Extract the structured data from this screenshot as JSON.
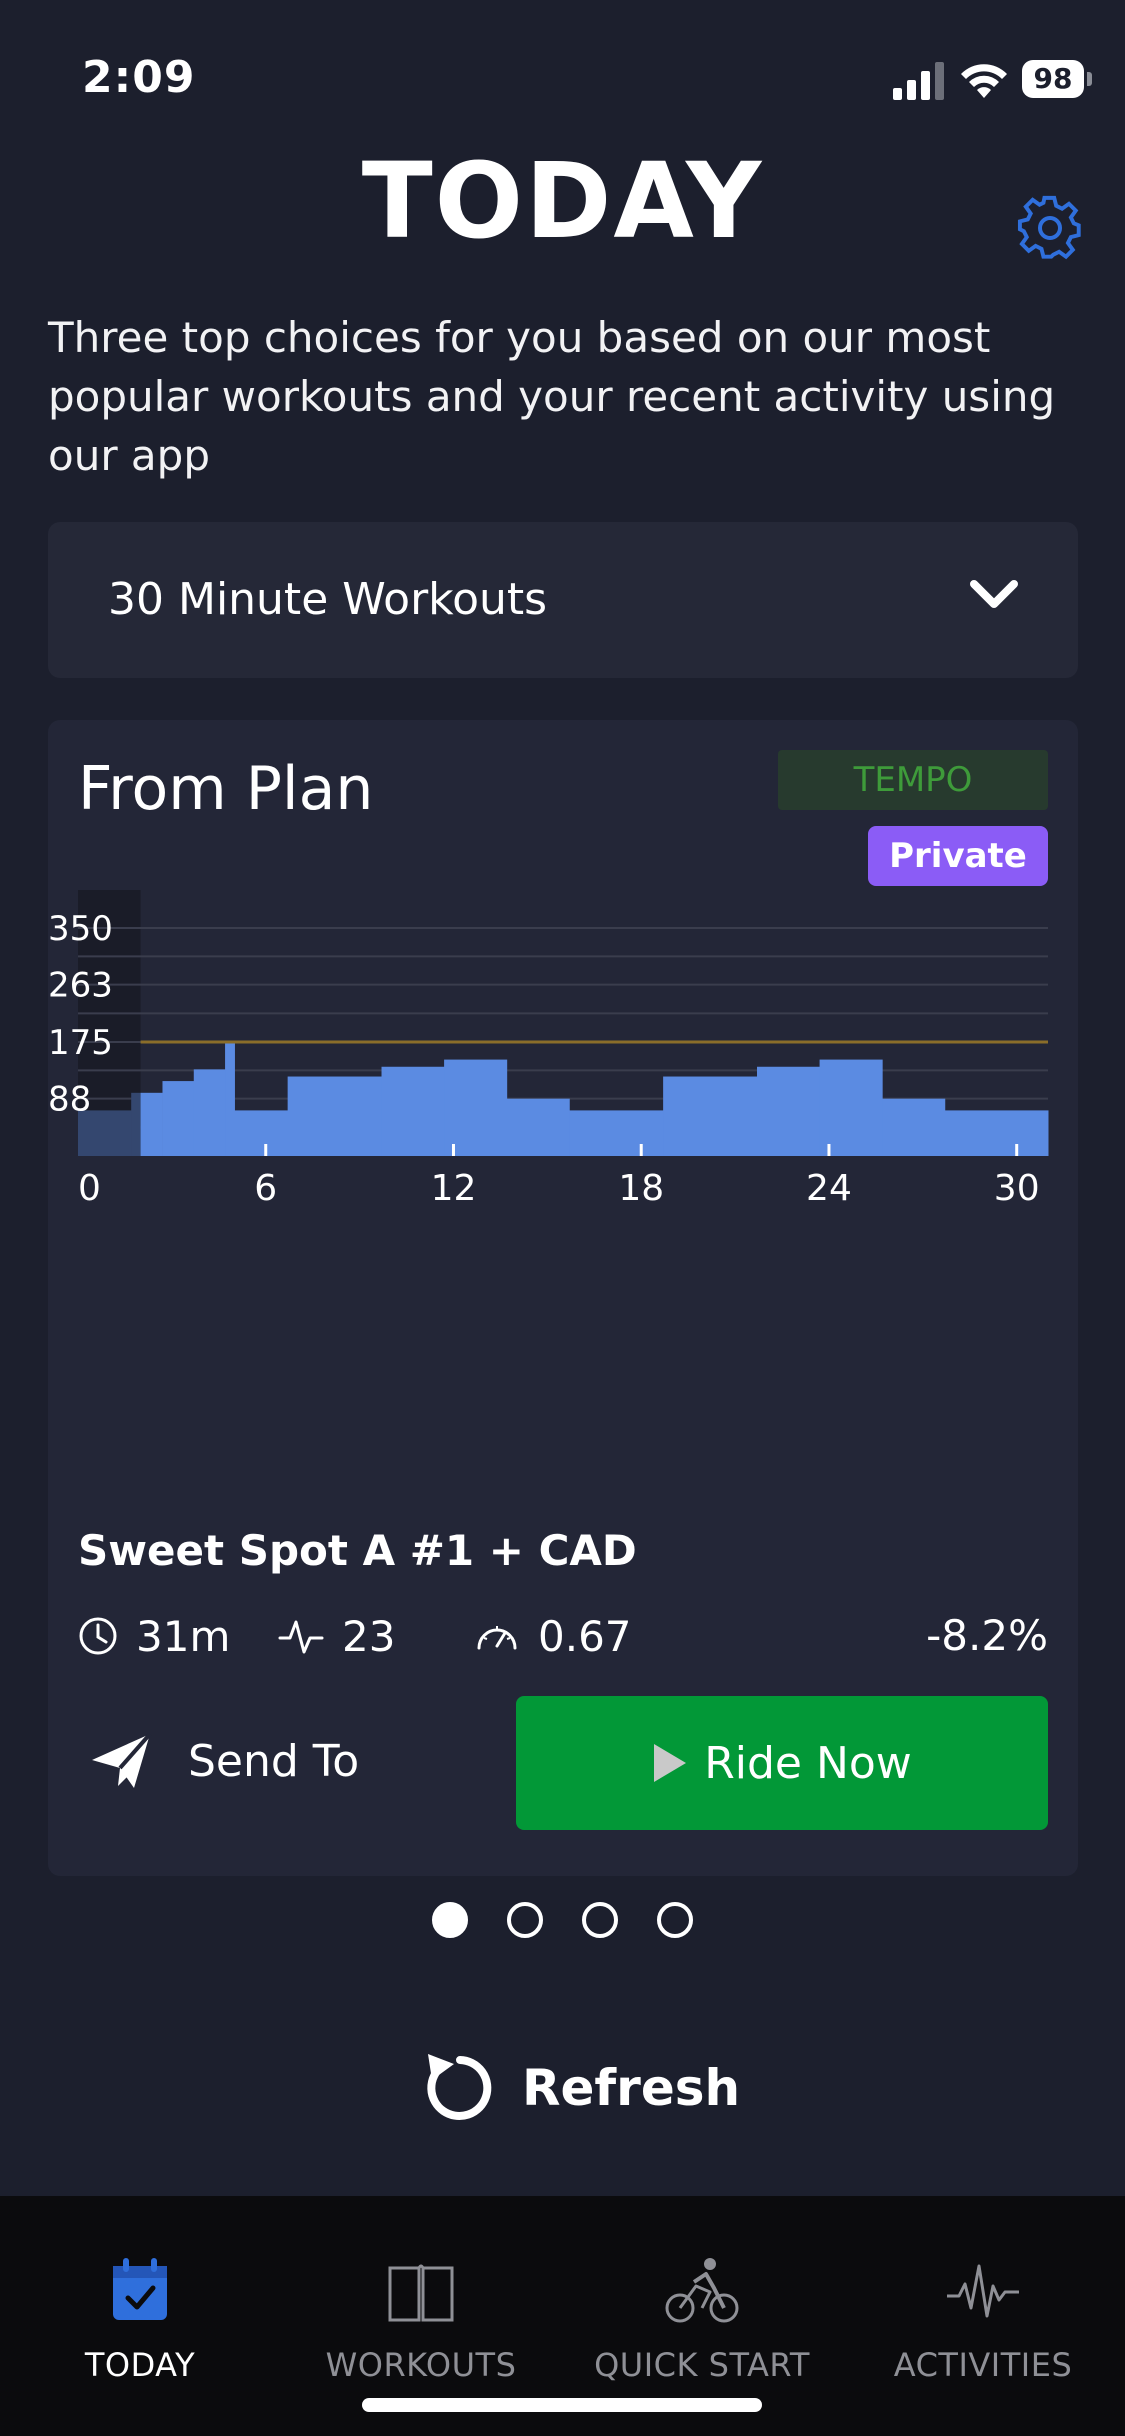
{
  "status_bar": {
    "time": "2:09",
    "battery": "98"
  },
  "header": {
    "title": "TODAY",
    "settings_icon": "gear-icon"
  },
  "intro_text": "Three top choices for you based on our most popular workouts and your recent activity using our app",
  "filter": {
    "selected": "30 Minute Workouts"
  },
  "card": {
    "title": "From Plan",
    "tag": "TEMPO",
    "visibility": "Private",
    "workout_name": "Sweet Spot A #1 + CAD",
    "stats": {
      "duration": "31m",
      "tss": "23",
      "intensity": "0.67",
      "change": "-8.2%"
    },
    "send_label": "Send To",
    "ride_label": "Ride Now"
  },
  "chart_data": {
    "type": "area",
    "y_ticks": [
      350,
      263,
      175,
      88
    ],
    "x_ticks": [
      0,
      6,
      12,
      18,
      24,
      30
    ],
    "xlim": [
      0,
      31
    ],
    "ylim": [
      0,
      350
    ],
    "reference_line": 175,
    "highlight_range": [
      0,
      2
    ],
    "steps": [
      {
        "start": 0,
        "end": 1.7,
        "value": 70
      },
      {
        "start": 1.7,
        "end": 2.7,
        "value": 97
      },
      {
        "start": 2.7,
        "end": 3.7,
        "value": 115
      },
      {
        "start": 3.7,
        "end": 4.7,
        "value": 133
      },
      {
        "start": 4.7,
        "end": 5.0,
        "value": 175
      },
      {
        "start": 5.0,
        "end": 6.7,
        "value": 70
      },
      {
        "start": 6.7,
        "end": 9.7,
        "value": 122
      },
      {
        "start": 9.7,
        "end": 11.7,
        "value": 137
      },
      {
        "start": 11.7,
        "end": 13.7,
        "value": 148
      },
      {
        "start": 13.7,
        "end": 15.7,
        "value": 88
      },
      {
        "start": 15.7,
        "end": 18.7,
        "value": 70
      },
      {
        "start": 18.7,
        "end": 21.7,
        "value": 122
      },
      {
        "start": 21.7,
        "end": 23.7,
        "value": 137
      },
      {
        "start": 23.7,
        "end": 25.7,
        "value": 148
      },
      {
        "start": 25.7,
        "end": 27.7,
        "value": 88
      },
      {
        "start": 27.7,
        "end": 31.0,
        "value": 70
      }
    ]
  },
  "pager": {
    "count": 4,
    "active": 0
  },
  "refresh_label": "Refresh",
  "tabs": [
    {
      "label": "TODAY",
      "icon": "calendar-check-icon",
      "active": true
    },
    {
      "label": "WORKOUTS",
      "icon": "book-icon",
      "active": false
    },
    {
      "label": "QUICK START",
      "icon": "cyclist-icon",
      "active": false
    },
    {
      "label": "ACTIVITIES",
      "icon": "activity-pulse-icon",
      "active": false
    }
  ],
  "colors": {
    "background": "#1c1f2d",
    "card": "#232637",
    "accent_blue": "#2f6fdc",
    "bar_blue": "#5b8be2",
    "ride_green": "#029837",
    "private_purple": "#8b5cf6",
    "reference_line": "#8a6d2a"
  }
}
